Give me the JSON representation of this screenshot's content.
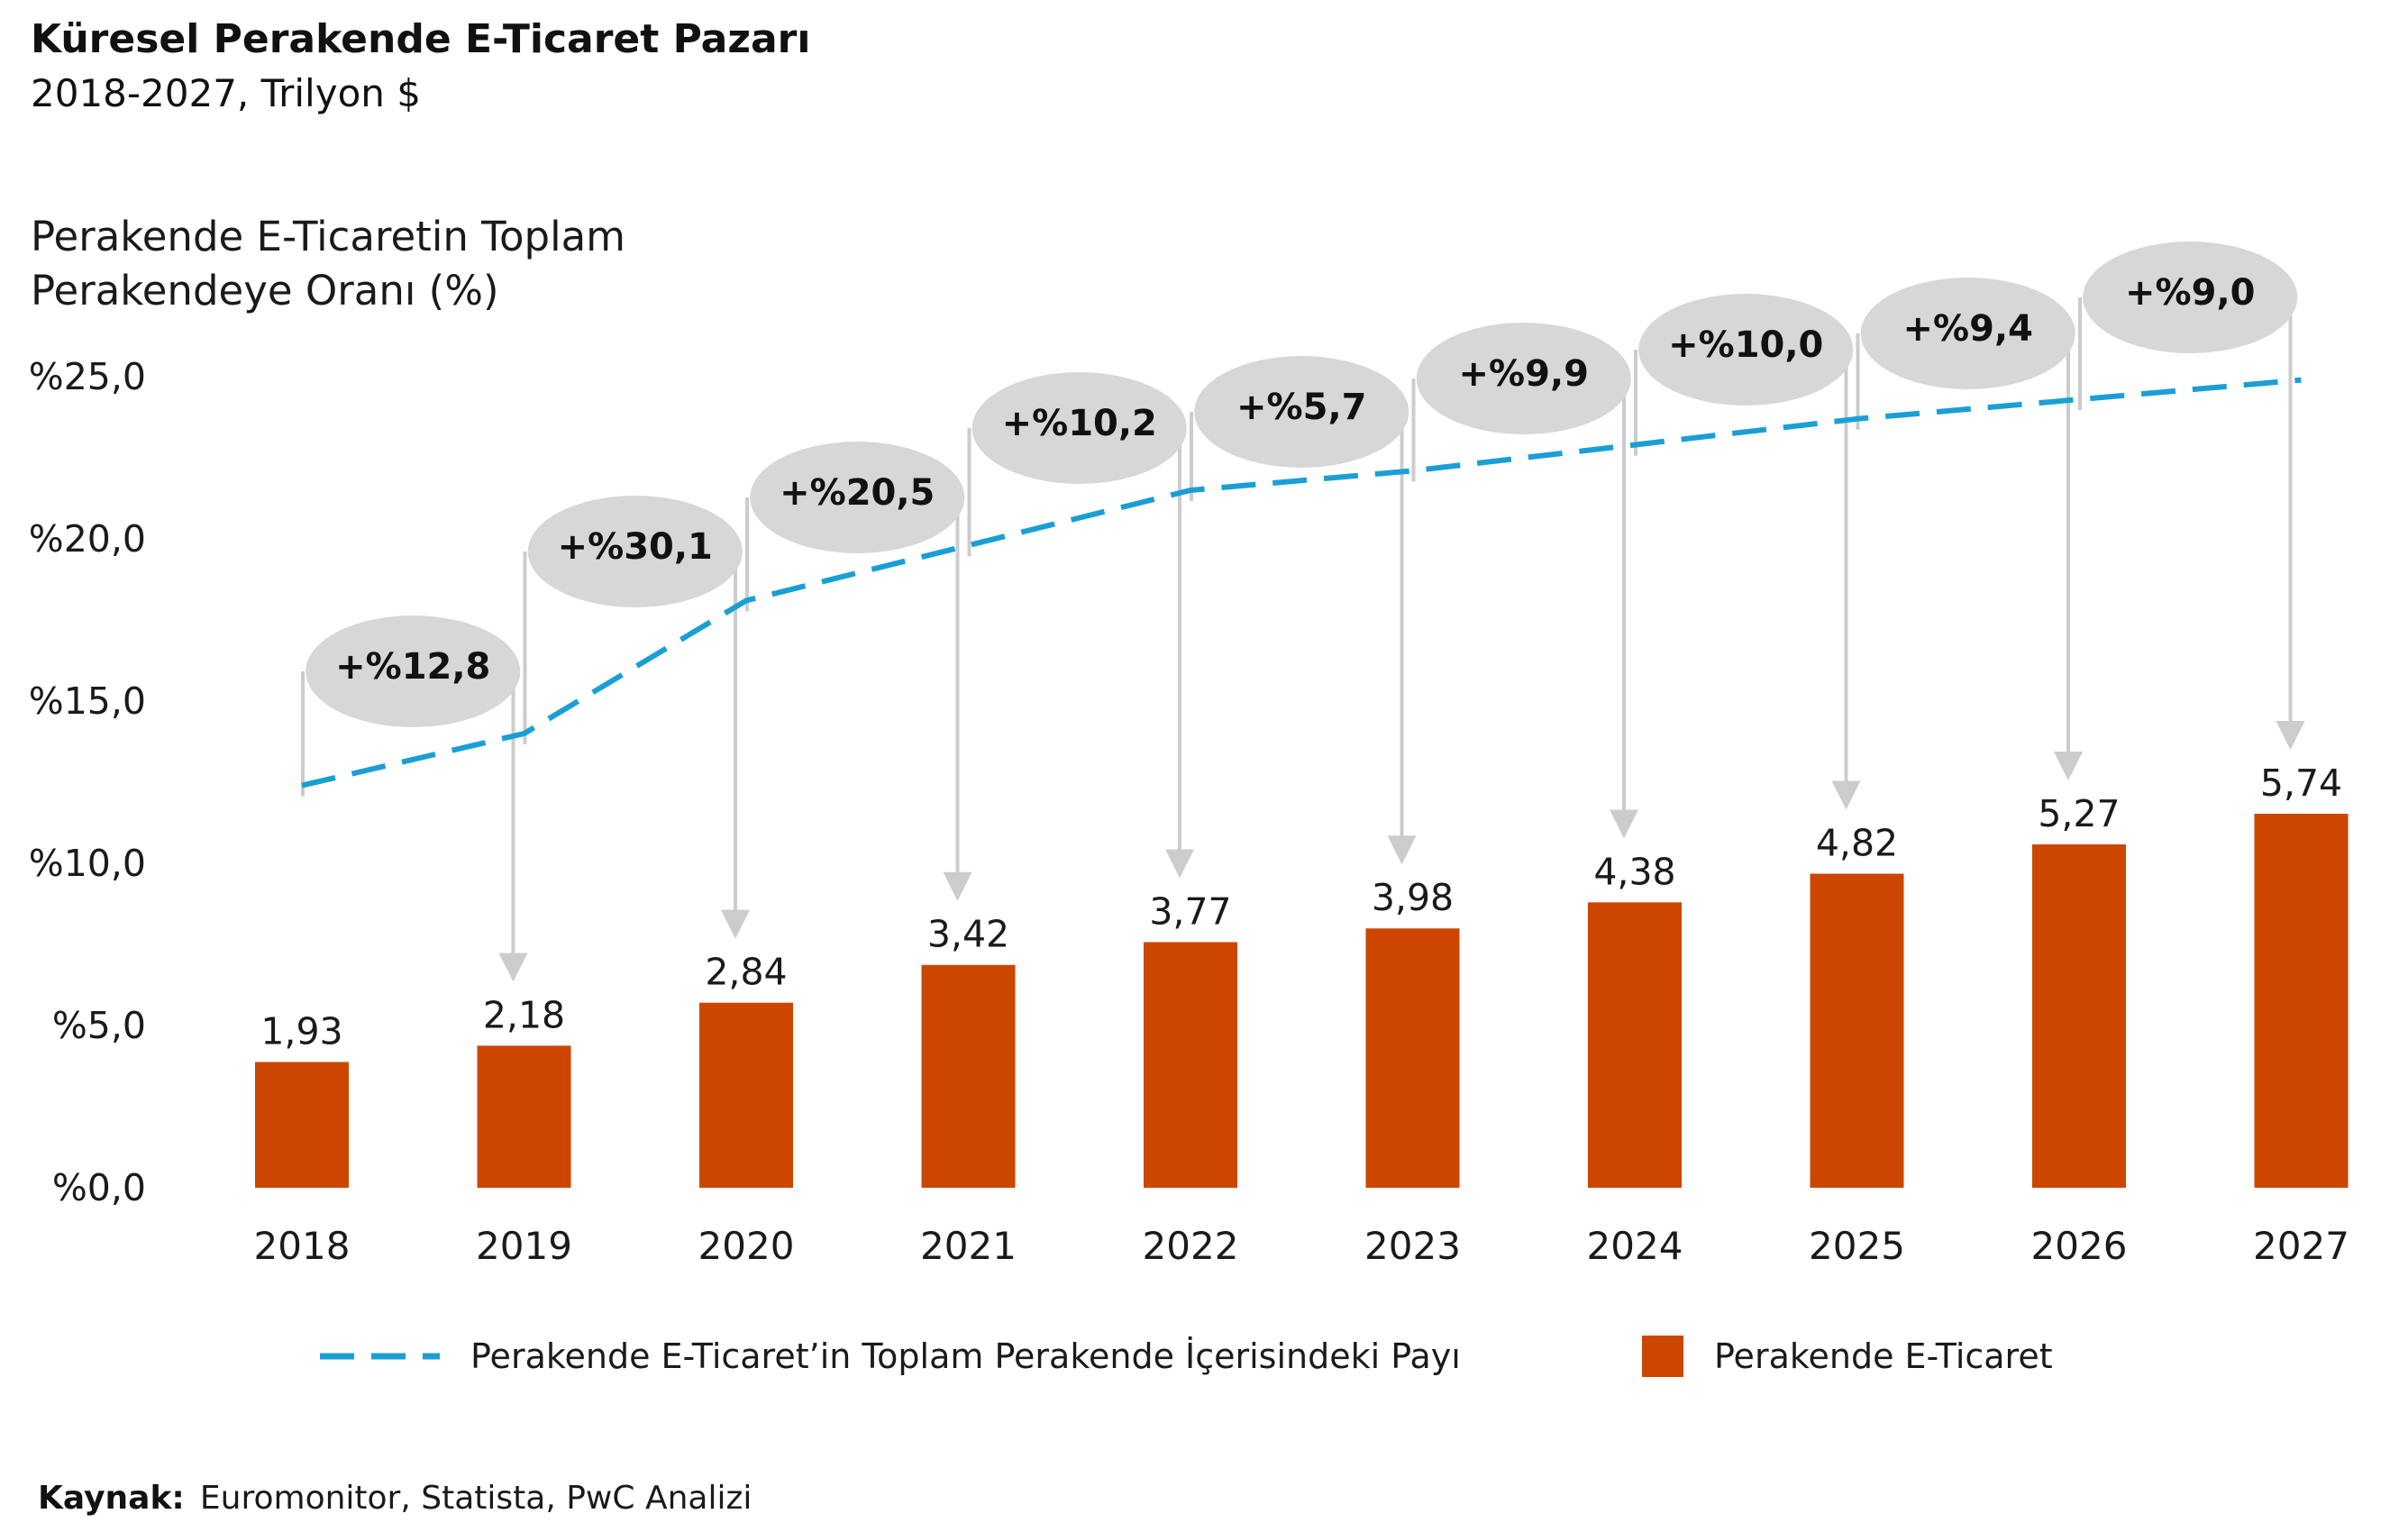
{
  "header": {
    "title": "Küresel Perakende E-Ticaret Pazarı",
    "subtitle": "2018-2027, Trilyon $"
  },
  "axis_title_lines": [
    "Perakende E-Ticaretin Toplam",
    "Perakendeye Oranı (%)"
  ],
  "legend": {
    "line_label": "Perakende E-Ticaret’in Toplam Perakende İçerisindeki Payı",
    "bar_label": "Perakende E-Ticaret"
  },
  "source": {
    "label": "Kaynak:",
    "text": "Euromonitor, Statista, PwC Analizi"
  },
  "colors": {
    "bar": "#cd4600",
    "line": "#1a9fd5",
    "bubble": "#d7d7d7",
    "arrow": "#cccccc"
  },
  "chart_data": {
    "type": "bar",
    "categories": [
      "2018",
      "2019",
      "2020",
      "2021",
      "2022",
      "2023",
      "2024",
      "2025",
      "2026",
      "2027"
    ],
    "series": [
      {
        "name": "Perakende E-Ticaret",
        "type": "bar",
        "values": [
          1.93,
          2.18,
          2.84,
          3.42,
          3.77,
          3.98,
          4.38,
          4.82,
          5.27,
          5.74
        ],
        "labels": [
          "1,93",
          "2,18",
          "2,84",
          "3,42",
          "3,77",
          "3,98",
          "4,38",
          "4,82",
          "5,27",
          "5,74"
        ]
      },
      {
        "name": "Perakende E-Ticaret’in Toplam Perakende İçerisindeki Payı",
        "type": "line",
        "style": "dashed",
        "values": [
          12.4,
          14.0,
          18.1,
          19.8,
          21.5,
          22.1,
          22.9,
          23.7,
          24.3,
          24.9
        ]
      }
    ],
    "growth_labels": [
      "+%12,8",
      "+%30,1",
      "+%20,5",
      "+%10,2",
      "+%5,7",
      "+%9,9",
      "+%10,0",
      "+%9,4",
      "+%9,0"
    ],
    "y_axis": {
      "title": "Perakende E-Ticaretin Toplam Perakendeye Oranı (%)",
      "ticks": [
        "%0,0",
        "%5,0",
        "%10,0",
        "%15,0",
        "%20,0",
        "%25,0"
      ],
      "ylim": [
        0,
        25
      ]
    },
    "grid": false,
    "legend_position": "bottom"
  }
}
